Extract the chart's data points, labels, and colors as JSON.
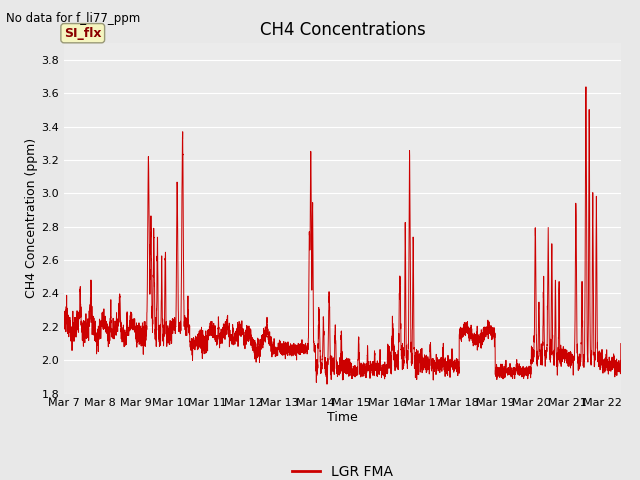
{
  "title": "CH4 Concentrations",
  "top_left_text": "No data for f_li77_ppm",
  "xlabel": "Time",
  "ylabel": "CH4 Concentration (ppm)",
  "ylim": [
    1.8,
    3.9
  ],
  "yticks": [
    1.8,
    2.0,
    2.2,
    2.4,
    2.6,
    2.8,
    3.0,
    3.2,
    3.4,
    3.6,
    3.8
  ],
  "xlim": [
    0,
    15.5
  ],
  "x_tick_labels": [
    "Mar 7",
    "Mar 8",
    "Mar 9",
    "Mar 10",
    "Mar 11",
    "Mar 12",
    "Mar 13",
    "Mar 14",
    "Mar 15",
    "Mar 16",
    "Mar 17",
    "Mar 18",
    "Mar 19",
    "Mar 20",
    "Mar 21",
    "Mar 22"
  ],
  "x_tick_positions": [
    0,
    1,
    2,
    3,
    4,
    5,
    6,
    7,
    8,
    9,
    10,
    11,
    12,
    13,
    14,
    15
  ],
  "line_color": "#cc0000",
  "line_label": "LGR FMA",
  "legend_line_color": "#cc0000",
  "fig_bg_color": "#e8e8e8",
  "plot_bg_color": "#ebebeb",
  "grid_color": "#ffffff",
  "label_box_color": "#f5f5c0",
  "label_box_text": "SI_flx",
  "label_box_text_color": "#8b0000",
  "title_fontsize": 12,
  "axis_label_fontsize": 9,
  "tick_fontsize": 8
}
